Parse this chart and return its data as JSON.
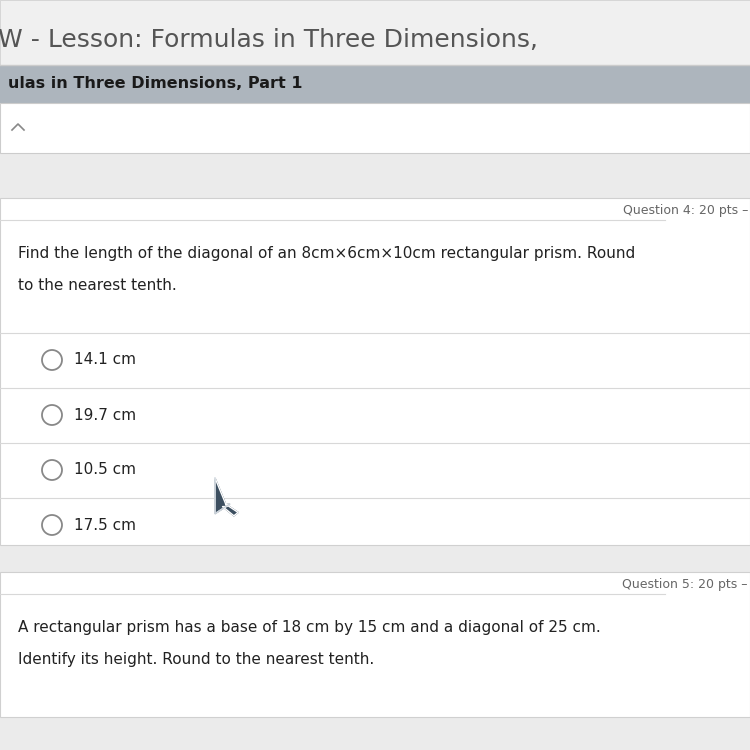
{
  "bg_color": "#ebebeb",
  "top_bar_color": "#f0f0f0",
  "top_bar_border": "#cccccc",
  "header_bar_color": "#adb5bd",
  "header_text": "ulas in Three Dimensions, Part 1",
  "header_text_color": "#1a1a1a",
  "top_title": "W - Lesson: Formulas in Three Dimensions,",
  "top_title_color": "#555555",
  "question_box_bg": "#ffffff",
  "question_box_border": "#d0d0d0",
  "question_label": "Question 4: 20 pts –",
  "question_label_color": "#666666",
  "question_text_line1": "Find the length of the diagonal of an 8cm×6cm×10cm rectangular prism. Round",
  "question_text_line2": "to the nearest tenth.",
  "question_text_color": "#222222",
  "options": [
    "14.1 cm",
    "19.7 cm",
    "10.5 cm",
    "17.5 cm"
  ],
  "option_color": "#222222",
  "radio_color": "#888888",
  "separator_color": "#d8d8d8",
  "bottom_box_bg": "#ffffff",
  "bottom_box_border": "#d0d0d0",
  "bottom_question_label": "Question 5: 20 pts –",
  "bottom_question_label_color": "#666666",
  "bottom_text_line1": "A rectangular prism has a base of 18 cm by 15 cm and a diagonal of 25 cm.",
  "bottom_text_line2": "Identify its height. Round to the nearest tenth.",
  "bottom_text_color": "#222222",
  "input_box_bg": "#ffffff",
  "input_box_border": "#cccccc"
}
